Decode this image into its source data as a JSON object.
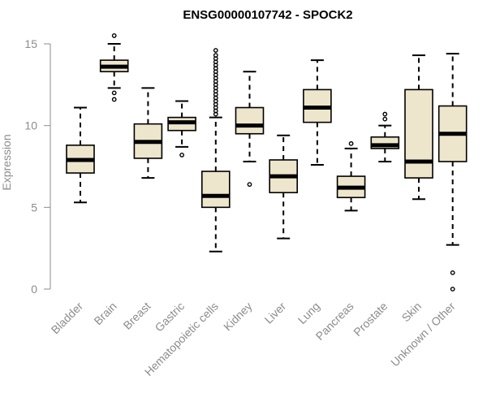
{
  "chart_data": {
    "type": "boxplot",
    "title": "ENSG00000107742 - SPOCK2",
    "xlabel": "",
    "ylabel": "Expression",
    "ylim": [
      0,
      15
    ],
    "yticks": [
      0,
      5,
      10,
      15
    ],
    "categories": [
      "Bladder",
      "Brain",
      "Breast",
      "Gastric",
      "Hematopoietic cells",
      "Kidney",
      "Liver",
      "Lung",
      "Pancreas",
      "Prostate",
      "Skin",
      "Unknown / Other"
    ],
    "boxes": [
      {
        "name": "Bladder",
        "whisker_low": 5.3,
        "q1": 7.1,
        "median": 7.9,
        "q3": 8.8,
        "whisker_high": 11.1,
        "outliers": []
      },
      {
        "name": "Brain",
        "whisker_low": 12.3,
        "q1": 13.3,
        "median": 13.6,
        "q3": 14.0,
        "whisker_high": 15.0,
        "outliers": [
          15.5,
          12.0,
          11.6
        ]
      },
      {
        "name": "Breast",
        "whisker_low": 6.8,
        "q1": 8.0,
        "median": 9.0,
        "q3": 10.1,
        "whisker_high": 12.3,
        "outliers": []
      },
      {
        "name": "Gastric",
        "whisker_low": 8.7,
        "q1": 9.7,
        "median": 10.2,
        "q3": 10.5,
        "whisker_high": 11.5,
        "outliers": [
          8.2
        ]
      },
      {
        "name": "Hematopoietic cells",
        "whisker_low": 2.3,
        "q1": 5.0,
        "median": 5.7,
        "q3": 7.2,
        "whisker_high": 10.5,
        "outliers": [
          10.7,
          10.9,
          11.1,
          11.3,
          11.5,
          11.7,
          11.9,
          12.1,
          12.3,
          12.5,
          12.7,
          12.9,
          13.1,
          13.3,
          13.5,
          13.7,
          13.9,
          14.1,
          14.3,
          14.6
        ]
      },
      {
        "name": "Kidney",
        "whisker_low": 7.8,
        "q1": 9.5,
        "median": 10.0,
        "q3": 11.1,
        "whisker_high": 13.3,
        "outliers": [
          6.4
        ]
      },
      {
        "name": "Liver",
        "whisker_low": 3.1,
        "q1": 5.9,
        "median": 6.9,
        "q3": 7.9,
        "whisker_high": 9.4,
        "outliers": []
      },
      {
        "name": "Lung",
        "whisker_low": 7.6,
        "q1": 10.2,
        "median": 11.1,
        "q3": 12.2,
        "whisker_high": 14.0,
        "outliers": []
      },
      {
        "name": "Pancreas",
        "whisker_low": 4.8,
        "q1": 5.6,
        "median": 6.2,
        "q3": 6.9,
        "whisker_high": 8.6,
        "outliers": [
          8.9
        ]
      },
      {
        "name": "Prostate",
        "whisker_low": 7.8,
        "q1": 8.6,
        "median": 8.8,
        "q3": 9.3,
        "whisker_high": 10.0,
        "outliers": [
          10.4,
          10.7
        ]
      },
      {
        "name": "Skin",
        "whisker_low": 5.5,
        "q1": 6.8,
        "median": 7.8,
        "q3": 12.2,
        "whisker_high": 14.3,
        "outliers": []
      },
      {
        "name": "Unknown / Other",
        "whisker_low": 2.7,
        "q1": 7.8,
        "median": 9.5,
        "q3": 11.2,
        "whisker_high": 14.4,
        "outliers": [
          1.0,
          0.0
        ]
      }
    ]
  }
}
